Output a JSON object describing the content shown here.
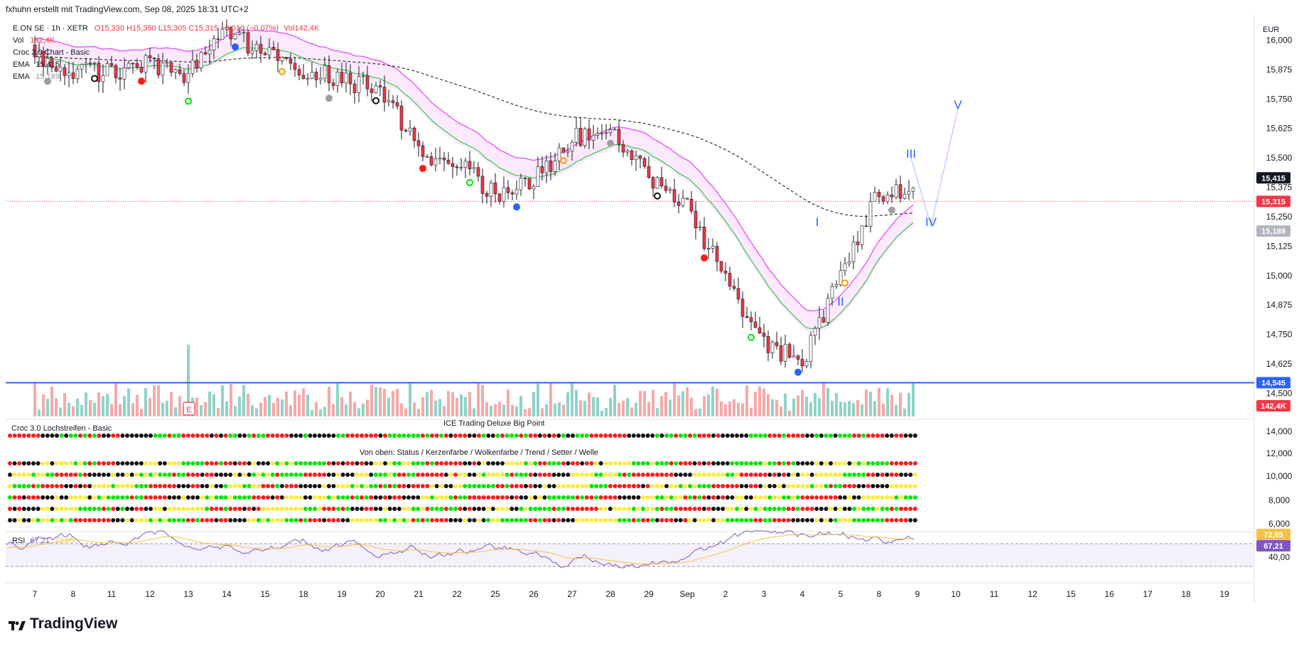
{
  "caption": "fxhuhn erstellt mit TradingView.com, Sep 08, 2025 18:31 UTC+2",
  "currency": "EUR",
  "legend": {
    "symbol": "E.ON SE · 1h · XETR",
    "ohlc": "O15,330 H15,350 L15,305 C15,315 −0,010 (−0,07%)",
    "vol_inline": "Vol142,4K",
    "vol_label": "Vol",
    "vol_value": "142,4K",
    "croc": "Croc 3.0 Chart - Basic",
    "ema1_label": "EMA",
    "ema1_value": "15,415",
    "ema2_label": "EMA",
    "ema2_value": "15,189"
  },
  "panes": {
    "lochstreifen": "Croc 3.0 Lochstreifen - Basic",
    "bigpoint": "ICE Trading Deluxe Big Point",
    "von_oben": "Von oben: Status / Kerzenfarbe / Wolkenfarbe / Trend / Setter / Welle",
    "rsi_label": "RSI",
    "rsi_value": "67,21",
    "rsi_ma": "72,65"
  },
  "price_axis": [
    "16,000",
    "15,875",
    "15,750",
    "15,625",
    "15,500",
    "15,375",
    "15,250",
    "15,125",
    "15,000",
    "14,875",
    "14,750",
    "14,625",
    "14,500"
  ],
  "indicator_axis": [
    "14,000",
    "12,000",
    "10,000",
    "8,000",
    "6,000",
    "40,00"
  ],
  "price_tags": {
    "ema_fast": "15,415",
    "last": "15,315",
    "ema_slow": "15,189",
    "support": "14,545",
    "volume": "142,4K",
    "rsi_ma": "72,65",
    "rsi": "67,21"
  },
  "wave_labels": [
    "I",
    "II",
    "III",
    "IV",
    "V"
  ],
  "earnings_marker": "E",
  "time_axis": [
    "7",
    "8",
    "11",
    "12",
    "13",
    "14",
    "15",
    "18",
    "19",
    "20",
    "21",
    "22",
    "25",
    "26",
    "27",
    "28",
    "29",
    "Sep",
    "2",
    "3",
    "4",
    "5",
    "8",
    "9",
    "10",
    "11",
    "12",
    "15",
    "16",
    "17",
    "18",
    "19"
  ],
  "brand": "TradingView",
  "colors": {
    "up": "#089981",
    "down": "#f23645",
    "candle_up_body": "#ffffff",
    "cloud": "#e040fb",
    "ema_fast": "#2ecc40",
    "support_line": "#2962ff",
    "wave": "#2962ff",
    "rsi": "#7e57c2",
    "rsi_ma": "#f5c242",
    "dot_green": "#00e600",
    "dot_red": "#ff1a1a",
    "dot_black": "#111111",
    "dot_yellow": "#ffeb3b"
  },
  "chart_data": {
    "type": "candlestick",
    "symbol": "E.ON SE",
    "interval": "1h",
    "exchange": "XETR",
    "ylim": [
      14.45,
      16.08
    ],
    "support_level": 14.545,
    "ema_fast_last": 15.415,
    "ema_slow_last": 15.189,
    "last_close": 15.315,
    "rsi_last": 67.21,
    "rsi_ma_last": 72.65,
    "x": [
      "7",
      "8",
      "11",
      "12",
      "13",
      "14",
      "15",
      "18",
      "19",
      "20",
      "21",
      "22",
      "25",
      "26",
      "27",
      "28",
      "29",
      "Sep",
      "2",
      "3",
      "4",
      "5",
      "8"
    ],
    "close": [
      15.93,
      15.88,
      15.86,
      15.9,
      15.86,
      16.03,
      15.95,
      15.88,
      15.82,
      15.8,
      15.52,
      15.48,
      15.35,
      15.4,
      15.58,
      15.62,
      15.42,
      15.28,
      14.98,
      14.72,
      14.62,
      15.0,
      15.35
    ],
    "series": [
      {
        "name": "EMA",
        "last": 15.415
      },
      {
        "name": "EMA",
        "last": 15.189
      }
    ]
  }
}
